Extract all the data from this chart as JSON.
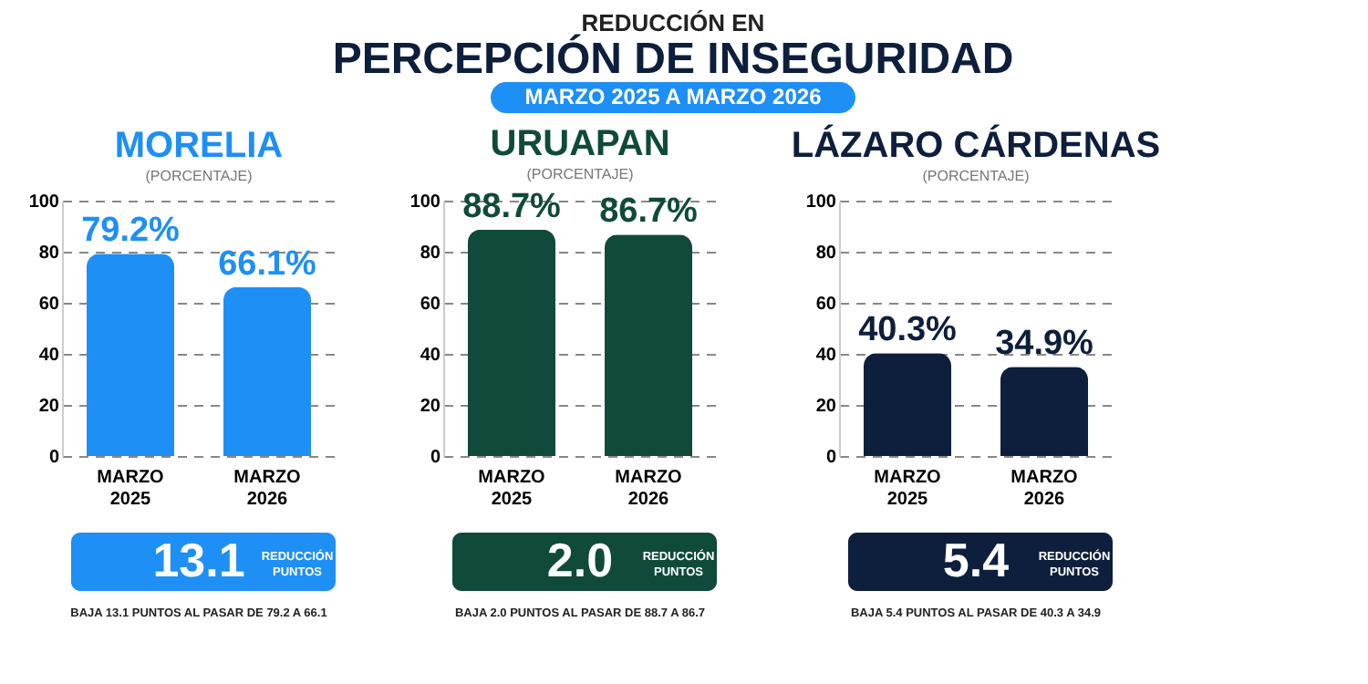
{
  "chart_data": [
    {
      "type": "bar",
      "title": "MORELIA",
      "subtitle": "(PORCENTAJE)",
      "annotations": [
        "REDUCCIÓN EN",
        "PERCEPCIÓN DE INSEGURIDAD",
        "MARZO 2025 A MARZO 2026",
        "13.1",
        "REDUCCIÓN PUNTOS",
        "BAJA 13.1 PUNTOS AL PASAR DE 79.2 A 66.1"
      ],
      "categories": [
        "MARZO 2025",
        "MARZO 2026"
      ],
      "values": [
        79.2,
        66.1
      ],
      "value_labels": [
        "79.2%",
        "66.1%"
      ],
      "color": "#1e8ff5",
      "ylim": [
        0,
        100
      ],
      "yticks": [
        0,
        20,
        40,
        60,
        80,
        100
      ],
      "grid": "y"
    },
    {
      "type": "bar",
      "title": "URUAPAN",
      "subtitle": "(PORCENTAJE)",
      "annotations": [
        "2.0",
        "REDUCCIÓN PUNTOS",
        "BAJA 2.0 PUNTOS AL PASAR DE 88.7 A 86.7"
      ],
      "categories": [
        "MARZO 2025",
        "MARZO 2026"
      ],
      "values": [
        88.7,
        86.7
      ],
      "value_labels": [
        "88.7%",
        "86.7%"
      ],
      "color": "#0f4a3a",
      "ylim": [
        0,
        100
      ],
      "yticks": [
        0,
        20,
        40,
        60,
        80,
        100
      ],
      "grid": "y"
    },
    {
      "type": "bar",
      "title": "LÁZARO CÁRDENAS",
      "subtitle": "(PORCENTAJE)",
      "annotations": [
        "5.4",
        "REDUCCIÓN PUNTOS",
        "BAJA 5.4 PUNTOS AL PASAR DE 40.3 A 34.9"
      ],
      "categories": [
        "MARZO 2025",
        "MARZO 2026"
      ],
      "values": [
        40.3,
        34.9
      ],
      "value_labels": [
        "40.3%",
        "34.9%"
      ],
      "color": "#0d1f3c",
      "ylim": [
        0,
        100
      ],
      "yticks": [
        0,
        20,
        40,
        60,
        80,
        100
      ],
      "grid": "y"
    }
  ]
}
